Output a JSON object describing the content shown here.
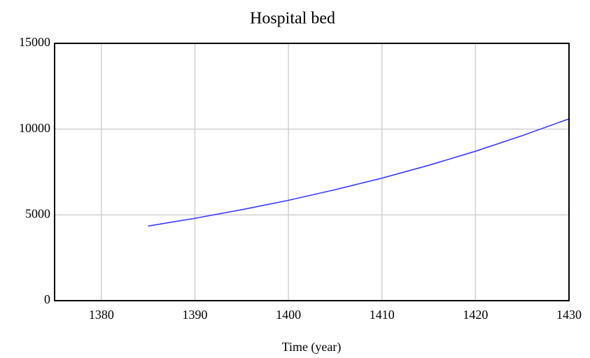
{
  "chart_data": {
    "type": "line",
    "title": "Hospital bed",
    "x_label": "Time (year)",
    "x": [
      1385,
      1390,
      1395,
      1400,
      1405,
      1410,
      1415,
      1420,
      1425,
      1430
    ],
    "series": [
      {
        "color": "#3b3bff",
        "values": [
          4350,
          4800,
          5300,
          5850,
          6470,
          7140,
          7890,
          8710,
          9620,
          10600
        ]
      }
    ],
    "xlim": [
      1375,
      1430
    ],
    "xticks": [
      1380,
      1390,
      1400,
      1410,
      1420,
      1430
    ],
    "ylim": [
      0,
      15000
    ],
    "yticks": [
      0,
      5000,
      10000,
      15000
    ],
    "grid": true
  }
}
